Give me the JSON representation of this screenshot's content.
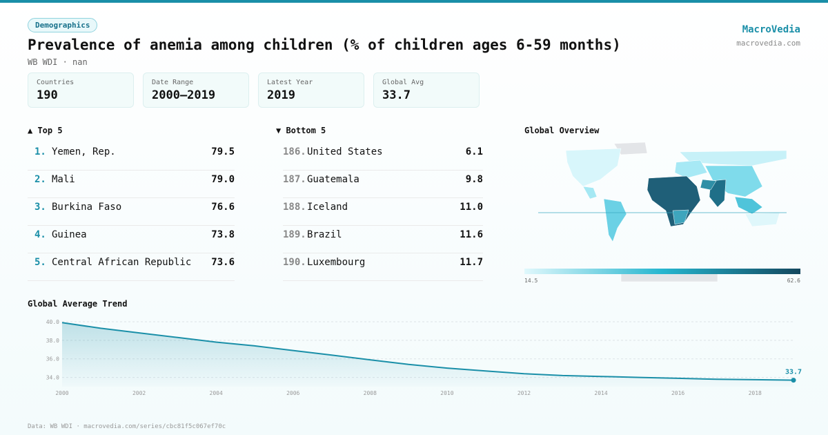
{
  "header": {
    "tag": "Demographics",
    "title": "Prevalence of anemia among children (% of children ages 6-59 months)",
    "subtitle": "WB WDI · nan",
    "brand": "MacroVedia",
    "site": "macrovedia.com"
  },
  "stats": [
    {
      "label": "Countries",
      "value": 190
    },
    {
      "label": "Date Range",
      "value": "2000–2019"
    },
    {
      "label": "Latest Year",
      "value": 2019
    },
    {
      "label": "Global Avg",
      "value": 33.7
    }
  ],
  "top": {
    "title": "▲ Top 5",
    "rows": [
      {
        "rank": "1.",
        "name": "Yemen, Rep.",
        "value": "79.5"
      },
      {
        "rank": "2.",
        "name": "Mali",
        "value": "79.0"
      },
      {
        "rank": "3.",
        "name": "Burkina Faso",
        "value": "76.6"
      },
      {
        "rank": "4.",
        "name": "Guinea",
        "value": "73.8"
      },
      {
        "rank": "5.",
        "name": "Central African Republic",
        "value": "73.6"
      }
    ]
  },
  "bottom": {
    "title": "▼ Bottom 5",
    "rows": [
      {
        "rank": "186.",
        "name": "United States",
        "value": "6.1"
      },
      {
        "rank": "187.",
        "name": "Guatemala",
        "value": "9.8"
      },
      {
        "rank": "188.",
        "name": "Iceland",
        "value": "11.0"
      },
      {
        "rank": "189.",
        "name": "Brazil",
        "value": "11.6"
      },
      {
        "rank": "190.",
        "name": "Luxembourg",
        "value": "11.7"
      }
    ]
  },
  "map": {
    "title": "Global Overview",
    "scale_min": "14.5",
    "scale_max": "62.6"
  },
  "chart_data": {
    "type": "line",
    "title": "Global Average Trend",
    "x": [
      2000,
      2001,
      2002,
      2003,
      2004,
      2005,
      2006,
      2007,
      2008,
      2009,
      2010,
      2011,
      2012,
      2013,
      2014,
      2015,
      2016,
      2017,
      2018,
      2019
    ],
    "values": [
      39.9,
      39.3,
      38.8,
      38.3,
      37.8,
      37.4,
      36.9,
      36.4,
      35.9,
      35.4,
      35.0,
      34.7,
      34.4,
      34.2,
      34.1,
      34.0,
      33.9,
      33.8,
      33.75,
      33.7
    ],
    "color": "#1a8fa8",
    "xlim": [
      2000,
      2019
    ],
    "xticks": [
      2000,
      2002,
      2004,
      2006,
      2008,
      2010,
      2012,
      2014,
      2016,
      2018
    ],
    "ylim": [
      33,
      40
    ],
    "yticks": [
      {
        "value": 34,
        "label": "34.0"
      },
      {
        "value": 36,
        "label": "36.0"
      },
      {
        "value": 38,
        "label": "38.0"
      },
      {
        "value": 40,
        "label": "40.0"
      }
    ],
    "grid": true
  },
  "footer": "Data: WB WDI · macrovedia.com/series/cbc81f5c067ef70c"
}
